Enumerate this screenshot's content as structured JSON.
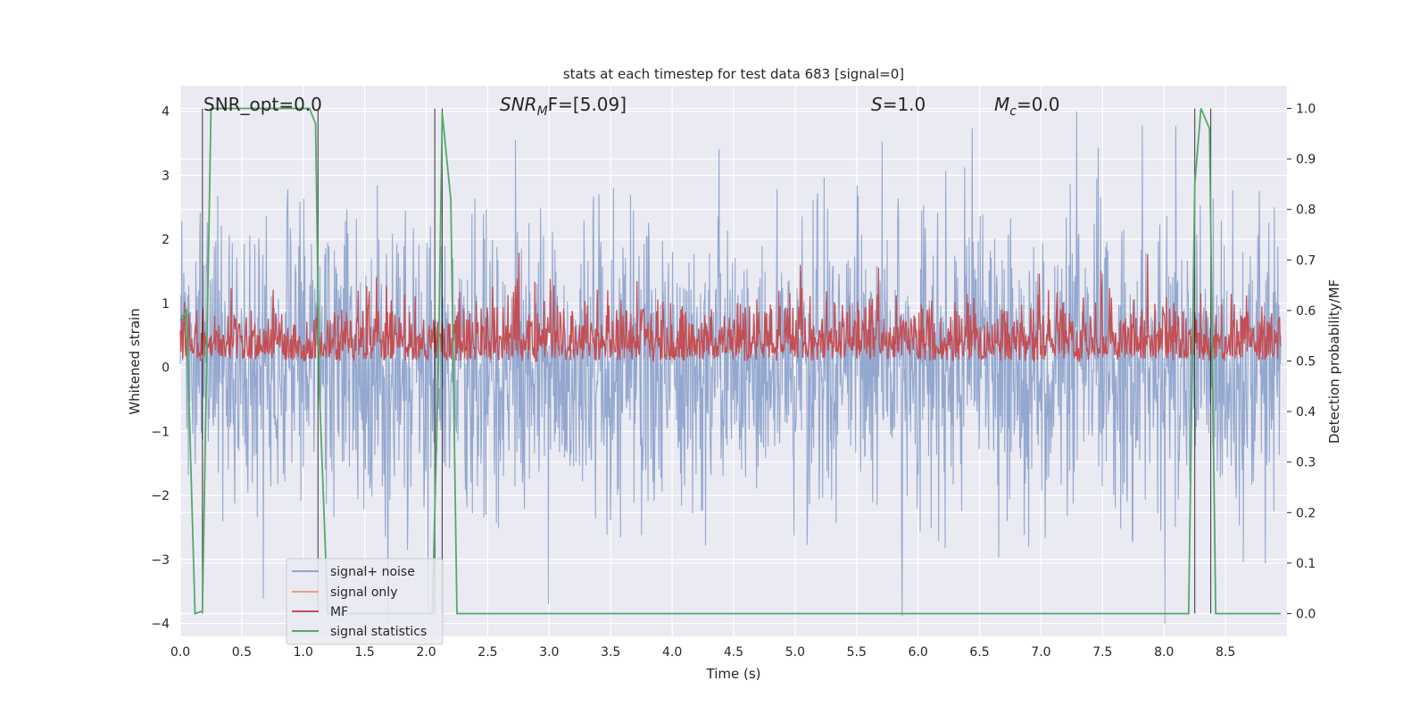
{
  "chart_data": {
    "type": "line",
    "title": "stats at each timestep for test data 683 [signal=0]",
    "xlabel": "Time (s)",
    "ylabel": "Whitened strain",
    "y2label": "Detection probability/MF",
    "xlim": [
      0,
      9.0
    ],
    "ylim": [
      -4.2,
      4.4
    ],
    "y2lim": [
      -0.045,
      1.045
    ],
    "x_ticks": [
      "0.0",
      "0.5",
      "1.0",
      "1.5",
      "2.0",
      "2.5",
      "3.0",
      "3.5",
      "4.0",
      "4.5",
      "5.0",
      "5.5",
      "6.0",
      "6.5",
      "7.0",
      "7.5",
      "8.0",
      "8.5"
    ],
    "y_ticks": [
      "4",
      "3",
      "2",
      "1",
      "0",
      "−1",
      "−2",
      "−3",
      "−4"
    ],
    "y2_ticks": [
      "1.0",
      "0.9",
      "0.8",
      "0.7",
      "0.6",
      "0.5",
      "0.4",
      "0.3",
      "0.2",
      "0.1",
      "0.0"
    ],
    "grid": true,
    "legend_position": "lower-left",
    "annotations": {
      "snr_opt": "SNR_opt=0.0",
      "snr_mf_base": "SNR",
      "snr_mf_sub": "M",
      "snr_mf_rest": "F=[5.09]",
      "s_label": "S",
      "s_value": "=1.0",
      "mc_base": "M",
      "mc_sub": "c",
      "mc_value": "=0.0"
    },
    "series": [
      {
        "name": "signal+ noise",
        "color": "#8fa4cc",
        "axis": "left",
        "kind": "noise",
        "amplitude_typical": 1.7,
        "amplitude_max": 4.0
      },
      {
        "name": "signal only",
        "color": "#e8a07d",
        "axis": "left",
        "values": []
      },
      {
        "name": "MF",
        "color": "#c44e52",
        "axis": "right",
        "kind": "noise",
        "baseline": 0.5,
        "amplitude_typical": 0.07,
        "peak": {
          "x": 6.11,
          "y": 0.62
        }
      },
      {
        "name": "signal statistics",
        "color": "#55a868",
        "axis": "right",
        "x": [
          0.0,
          0.05,
          0.12,
          0.18,
          0.25,
          0.3,
          1.05,
          1.1,
          1.13,
          1.2,
          2.05,
          2.1,
          2.13,
          2.2,
          2.25,
          8.2,
          8.25,
          8.3,
          8.37,
          8.42,
          8.48,
          8.95
        ],
        "y": [
          0.58,
          0.6,
          0.0,
          0.005,
          1.0,
          1.0,
          1.0,
          0.97,
          0.45,
          0.0,
          0.0,
          0.5,
          0.99,
          0.82,
          0.0,
          0.0,
          0.85,
          1.0,
          0.96,
          0.0,
          0.0,
          0.0
        ]
      },
      {
        "name": "",
        "color": "#000000",
        "axis": "right",
        "kind": "vlines",
        "x": [
          0.18,
          1.12,
          2.07,
          2.13,
          8.25,
          8.38
        ]
      }
    ]
  }
}
